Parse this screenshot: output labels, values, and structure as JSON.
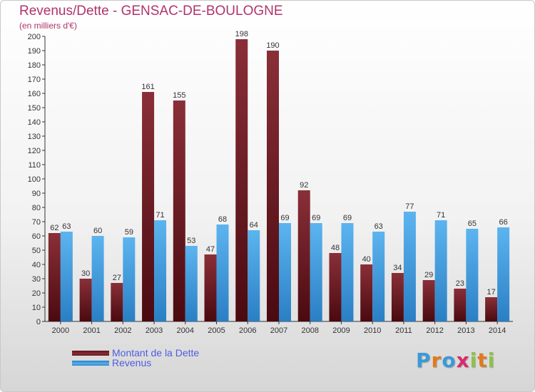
{
  "header": {
    "title": "Revenus/Dette - GENSAC-DE-BOULOGNE",
    "subtitle": "(en milliers d'€)"
  },
  "chart_data": {
    "type": "bar",
    "categories": [
      "2000",
      "2001",
      "2002",
      "2003",
      "2004",
      "2005",
      "2006",
      "2007",
      "2008",
      "2009",
      "2010",
      "2011",
      "2012",
      "2013",
      "2014"
    ],
    "series": [
      {
        "name": "Montant de la Dette",
        "color": "#7a1f2a",
        "values": [
          62,
          30,
          27,
          161,
          155,
          47,
          198,
          190,
          92,
          48,
          40,
          34,
          29,
          23,
          17
        ]
      },
      {
        "name": "Revenus",
        "color": "#3d9be0",
        "values": [
          63,
          60,
          59,
          71,
          53,
          68,
          64,
          69,
          69,
          69,
          63,
          77,
          71,
          65,
          66
        ]
      }
    ],
    "ylim": [
      0,
      200
    ],
    "ytick_step": 10,
    "xlabel": "",
    "ylabel": "",
    "grid": false,
    "legend": "bottom-left"
  },
  "legend": {
    "debt_label": "Montant de la Dette",
    "revenue_label": "Revenus"
  },
  "logo": {
    "letters": [
      "P",
      "r",
      "o",
      "x",
      "i",
      "t",
      "i"
    ],
    "colors": [
      "#3a9ad9",
      "#e07b1e",
      "#3a9ad9",
      "#d92b6b",
      "#8bc34a",
      "#e07b1e",
      "#8bc34a"
    ]
  }
}
